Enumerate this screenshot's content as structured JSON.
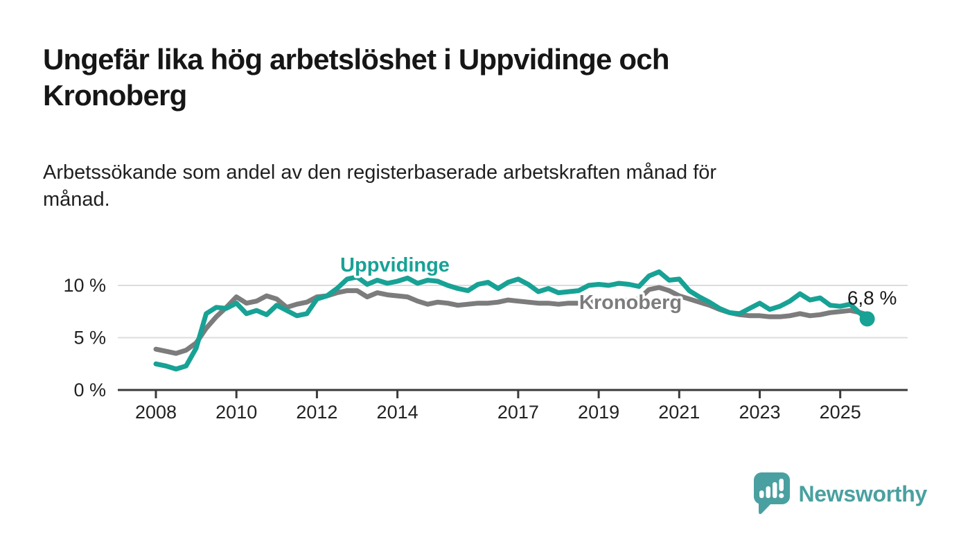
{
  "page": {
    "title_lines": [
      "Ungefär lika hög arbetslöshet i Uppvidinge och",
      "Kronoberg"
    ],
    "subtitle_lines": [
      "Arbetssökande som andel av den registerbaserade arbetskraften månad för",
      "månad."
    ]
  },
  "chart_data": {
    "type": "line",
    "title": "Ungefär lika hög arbetslöshet i Uppvidinge och Kronoberg",
    "subtitle": "Arbetssökande som andel av den registerbaserade arbetskraften månad för månad.",
    "unit": "%",
    "grid": "horizontal",
    "legend_position": "inline-labels",
    "xlim": [
      2007.1,
      2026.7
    ],
    "ylim": [
      0,
      12.5
    ],
    "x_ticks": [
      2008,
      2010,
      2012,
      2014,
      2017,
      2019,
      2021,
      2023,
      2025
    ],
    "y_ticks": [
      0,
      5,
      10
    ],
    "y_tick_labels": [
      "0 %",
      "5 %",
      "10 %"
    ],
    "x": [
      2008.0,
      2008.25,
      2008.5,
      2008.75,
      2009.0,
      2009.25,
      2009.5,
      2009.75,
      2010.0,
      2010.25,
      2010.5,
      2010.75,
      2011.0,
      2011.25,
      2011.5,
      2011.75,
      2012.0,
      2012.25,
      2012.5,
      2012.75,
      2013.0,
      2013.25,
      2013.5,
      2013.75,
      2014.0,
      2014.25,
      2014.5,
      2014.75,
      2015.0,
      2015.25,
      2015.5,
      2015.75,
      2016.0,
      2016.25,
      2016.5,
      2016.75,
      2017.0,
      2017.25,
      2017.5,
      2017.75,
      2018.0,
      2018.25,
      2018.5,
      2018.75,
      2019.0,
      2019.25,
      2019.5,
      2019.75,
      2020.0,
      2020.25,
      2020.5,
      2020.75,
      2021.0,
      2021.25,
      2021.5,
      2021.75,
      2022.0,
      2022.25,
      2022.5,
      2022.75,
      2023.0,
      2023.25,
      2023.5,
      2023.75,
      2024.0,
      2024.25,
      2024.5,
      2024.75,
      2025.0,
      2025.25,
      2025.5,
      2025.67
    ],
    "series": [
      {
        "name": "Uppvidinge",
        "color": "#17a295",
        "values": [
          2.5,
          2.3,
          2.0,
          2.3,
          4.0,
          7.3,
          7.9,
          7.8,
          8.3,
          7.3,
          7.6,
          7.2,
          8.1,
          7.6,
          7.1,
          7.3,
          8.7,
          9.0,
          9.7,
          10.6,
          10.8,
          10.1,
          10.5,
          10.2,
          10.4,
          10.7,
          10.2,
          10.5,
          10.4,
          10.0,
          9.7,
          9.5,
          10.1,
          10.3,
          9.7,
          10.3,
          10.6,
          10.1,
          9.4,
          9.7,
          9.3,
          9.4,
          9.5,
          10.0,
          10.1,
          10.0,
          10.2,
          10.1,
          9.9,
          10.9,
          11.3,
          10.5,
          10.6,
          9.5,
          8.9,
          8.4,
          7.8,
          7.4,
          7.3,
          7.8,
          8.3,
          7.7,
          8.0,
          8.5,
          9.2,
          8.6,
          8.8,
          8.1,
          8.0,
          8.2,
          7.3,
          6.8
        ]
      },
      {
        "name": "Kronoberg",
        "color": "#7c7c7c",
        "values": [
          3.9,
          3.7,
          3.5,
          3.8,
          4.5,
          5.9,
          7.0,
          7.9,
          8.9,
          8.3,
          8.5,
          9.0,
          8.7,
          7.9,
          8.2,
          8.4,
          8.9,
          9.0,
          9.3,
          9.5,
          9.5,
          8.9,
          9.3,
          9.1,
          9.0,
          8.9,
          8.5,
          8.2,
          8.4,
          8.3,
          8.1,
          8.2,
          8.3,
          8.3,
          8.4,
          8.6,
          8.5,
          8.4,
          8.3,
          8.3,
          8.2,
          8.3,
          8.3,
          8.4,
          8.5,
          8.5,
          8.5,
          8.6,
          8.7,
          9.6,
          9.8,
          9.5,
          9.0,
          8.7,
          8.4,
          8.1,
          7.7,
          7.4,
          7.2,
          7.1,
          7.1,
          7.0,
          7.0,
          7.1,
          7.3,
          7.1,
          7.2,
          7.4,
          7.5,
          7.6,
          7.4,
          7.2
        ]
      }
    ],
    "end_annotation": {
      "series": "Uppvidinge",
      "label": "6,8 %",
      "value": 6.8
    }
  },
  "footer": {
    "brand": "Newsworthy",
    "logo_color": "#4aa0a0"
  },
  "colors": {
    "uppvidinge_line": "#17a295",
    "kronoberg_line": "#7c7c7c",
    "gridline": "#dcdcdc",
    "axis": "#3a3a3a",
    "text_dark": "#1a1a1a",
    "background": "#ffffff"
  }
}
